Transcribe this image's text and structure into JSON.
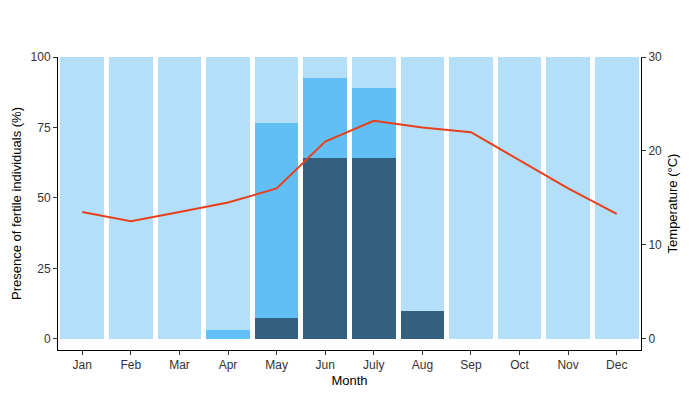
{
  "chart_data": {
    "type": "bar",
    "stacked": true,
    "grid": false,
    "xlabel": "Month",
    "ylabel": "Presence of fertile individuals (%)",
    "y2label": "Temperature (°C)",
    "categories": [
      "Jan",
      "Feb",
      "Mar",
      "Apr",
      "May",
      "Jun",
      "July",
      "Aug",
      "Sep",
      "Oct",
      "Nov",
      "Dec"
    ],
    "ylim": [
      -4,
      100
    ],
    "yticks": [
      0,
      25,
      50,
      75,
      100
    ],
    "y2lim": [
      -1.2,
      30
    ],
    "y2ticks": [
      0,
      10,
      20,
      30
    ],
    "series": [
      {
        "type": "bar",
        "color": "#33607f",
        "values": [
          0,
          0,
          0,
          0,
          7.5,
          64,
          64,
          10,
          0,
          0,
          0,
          0
        ]
      },
      {
        "type": "bar",
        "color": "#62bff5",
        "values": [
          0,
          0,
          0,
          3,
          69,
          28.5,
          25,
          0,
          0,
          0,
          0,
          0
        ]
      },
      {
        "type": "bar",
        "color": "#b3dff8",
        "values": [
          100,
          100,
          100,
          97,
          23.5,
          7.5,
          11,
          90,
          100,
          100,
          100,
          100
        ]
      },
      {
        "type": "line",
        "axis": "y2",
        "color": "#e8401c",
        "values": [
          13.5,
          12.5,
          13.5,
          14.5,
          16,
          21,
          23.2,
          22.5,
          22,
          19,
          16,
          13.3
        ]
      }
    ]
  }
}
